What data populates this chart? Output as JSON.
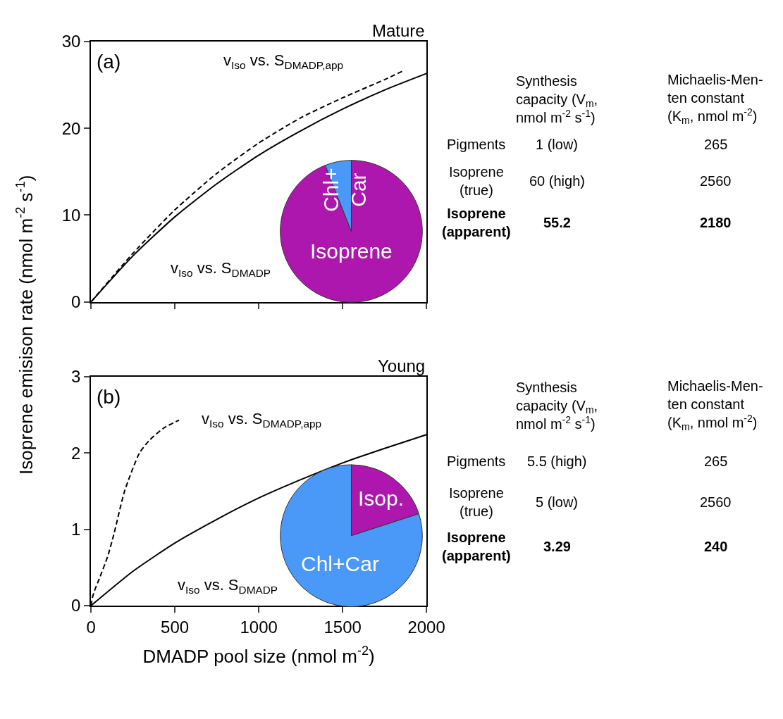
{
  "chart_data": [
    {
      "type": "line",
      "title": "Mature",
      "ylabel": "Isoprene emisison rate (nmol m$^{-2}$ s$^{-1}$)",
      "xlim": [
        0,
        2000
      ],
      "xticks": [
        0,
        500,
        1000,
        1500,
        2000
      ],
      "ylim": [
        0,
        30
      ],
      "yticks": [
        0,
        10,
        20,
        30
      ],
      "tick_labels": "y",
      "series": [
        {
          "color": "#000000",
          "line_style": "solid",
          "x": [
            0,
            250,
            500,
            750,
            1000,
            1250,
            1500,
            1750,
            2000
          ],
          "values": [
            0,
            5.3,
            9.8,
            13.6,
            16.9,
            19.7,
            22.2,
            24.4,
            26.3
          ]
        },
        {
          "color": "#000000",
          "line_style": "dashed",
          "x": [
            0,
            250,
            500,
            750,
            1000,
            1250,
            1500,
            1750,
            1861
          ],
          "values": [
            0,
            5.6,
            10.6,
            14.8,
            18.3,
            21.2,
            23.5,
            25.6,
            26.6
          ]
        }
      ],
      "annotations": [
        "(a)",
        "v$_{Iso}$ vs. S$_{DMADP}$",
        "v$_{Iso}$ vs. S$_{DMADP,app}$"
      ]
    },
    {
      "type": "pie",
      "categories": [
        "Isoprene",
        "Chl+\nCar"
      ],
      "values": [
        94,
        6
      ],
      "colors": [
        "#ae17ad",
        "#4a98f7"
      ]
    },
    {
      "type": "other",
      "categories": [
        null,
        "Synthesis\ncapacity (V$_{m}$,\nnmol m$^{-2}$ s$^{-1}$)",
        "Michaelis-Men-\nten constant\n(K$_{m}$, nmol m$^{-2}$)"
      ],
      "y_categories": [
        "Pigments",
        "Isoprene\n(true)",
        "Isoprene\n(apparent)"
      ],
      "cell_labels": [
        [
          "1 (low)",
          "265"
        ],
        [
          "60 (high)",
          "2560"
        ],
        [
          "55.2",
          "2180"
        ]
      ]
    },
    {
      "type": "line",
      "title": "Young",
      "xlabel": "DMADP pool size (nmol m$^{-2}$)",
      "xlim": [
        0,
        2000
      ],
      "xticks": [
        0,
        500,
        1000,
        1500,
        2000
      ],
      "ylim": [
        0,
        3
      ],
      "yticks": [
        0,
        1,
        2,
        3
      ],
      "series": [
        {
          "color": "#000000",
          "line_style": "solid",
          "x": [
            0,
            250,
            500,
            750,
            1000,
            1250,
            1500,
            1750,
            2000
          ],
          "values": [
            0,
            0.45,
            0.82,
            1.13,
            1.41,
            1.65,
            1.87,
            2.06,
            2.24
          ]
        },
        {
          "color": "#000000",
          "line_style": "dashed",
          "x": [
            0,
            10,
            25,
            49,
            100,
            138,
            200,
            289,
            350,
            436,
            525
          ],
          "values": [
            0,
            0.12,
            0.22,
            0.35,
            0.65,
            0.95,
            1.5,
            2.0,
            2.17,
            2.33,
            2.43
          ]
        }
      ],
      "annotations": [
        "(b)",
        "v$_{Iso}$ vs. S$_{DMADP}$",
        "v$_{Iso}$ vs. S$_{DMADP,app}$"
      ]
    },
    {
      "type": "pie",
      "categories": [
        "Isop.",
        "Chl+Car"
      ],
      "values": [
        20,
        80
      ],
      "colors": [
        "#ae17ad",
        "#4a98f7"
      ]
    },
    {
      "type": "other",
      "categories": [
        null,
        "Synthesis\ncapacity (V$_{m}$,\nnmol m$^{-2}$ s$^{-1}$)",
        "Michaelis-Men-\nten constant\n(K$_{m}$, nmol m$^{-2}$)"
      ],
      "y_categories": [
        "Pigments",
        "Isoprene\n(true)",
        "Isoprene\n(apparent)"
      ],
      "cell_labels": [
        [
          "5.5 (high)",
          "265"
        ],
        [
          "5 (low)",
          "2560"
        ],
        [
          "3.29",
          "240"
        ]
      ]
    }
  ]
}
